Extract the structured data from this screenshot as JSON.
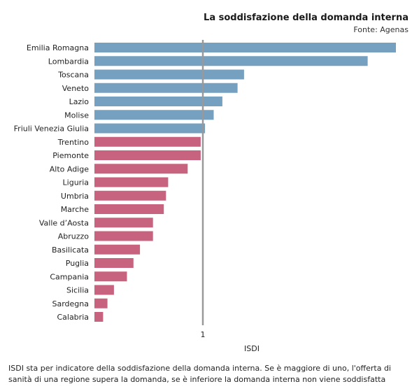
{
  "colors": {
    "above": "#76a0bf",
    "below": "#c8637f",
    "reference_line": "#999999"
  },
  "chart_data": {
    "type": "bar",
    "orientation": "horizontal",
    "title": "La soddisfazione della domanda interna",
    "subtitle": "Fonte: Agenas",
    "xlabel": "ISDI",
    "ylabel": "",
    "xlim": [
      0.5,
      1.9
    ],
    "xticks": [
      1
    ],
    "reference_value": 1,
    "categories": [
      "Emilia Romagna",
      "Lombardia",
      "Toscana",
      "Veneto",
      "Lazio",
      "Molise",
      "Friuli Venezia Giulia",
      "Trentino",
      "Piemonte",
      "Alto Adige",
      "Liguria",
      "Umbria",
      "Marche",
      "Valle d’Aosta",
      "Abruzzo",
      "Basilicata",
      "Puglia",
      "Campania",
      "Sicilia",
      "Sardegna",
      "Calabria"
    ],
    "values": [
      1.92,
      1.76,
      1.19,
      1.16,
      1.09,
      1.05,
      1.01,
      0.99,
      0.99,
      0.93,
      0.84,
      0.83,
      0.82,
      0.77,
      0.77,
      0.71,
      0.68,
      0.65,
      0.59,
      0.56,
      0.54
    ],
    "grid": false,
    "legend": "none",
    "footnote": "ISDI sta per indicatore della soddisfazione della domanda interna. Se è maggiore di uno, l'offerta di sanità di una regione supera la domanda, se è inferiore la domanda interna non viene soddisfatta"
  }
}
